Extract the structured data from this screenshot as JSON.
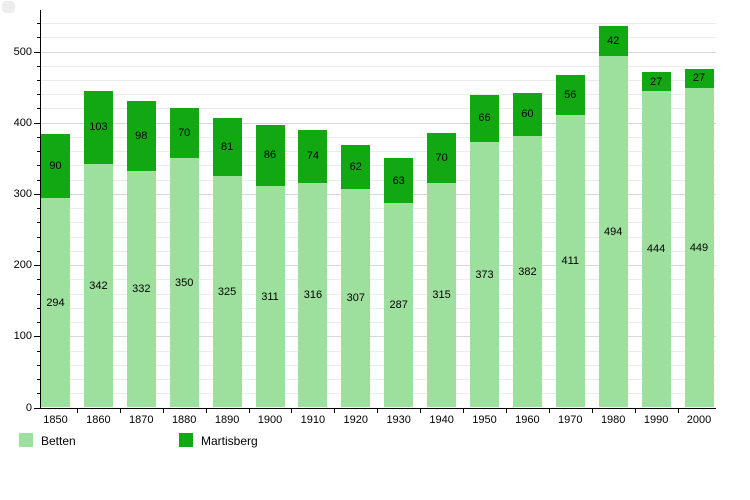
{
  "chart_data": {
    "type": "bar",
    "stacked": true,
    "title": "",
    "xlabel": "",
    "ylabel": "",
    "categories": [
      "1850",
      "1860",
      "1870",
      "1880",
      "1890",
      "1900",
      "1910",
      "1920",
      "1930",
      "1940",
      "1950",
      "1960",
      "1970",
      "1980",
      "1990",
      "2000"
    ],
    "series": [
      {
        "name": "Betten",
        "color": "#9de09d",
        "values": [
          294,
          342,
          332,
          350,
          325,
          311,
          316,
          307,
          287,
          315,
          373,
          382,
          411,
          494,
          444,
          449
        ]
      },
      {
        "name": "Martisberg",
        "color": "#12a812",
        "values": [
          90,
          103,
          98,
          70,
          81,
          86,
          74,
          62,
          63,
          70,
          66,
          60,
          56,
          42,
          27,
          27
        ]
      }
    ],
    "totals": [
      384,
      445,
      430,
      420,
      406,
      397,
      390,
      369,
      350,
      385,
      439,
      442,
      467,
      536,
      471,
      476
    ],
    "ylim": [
      0,
      540
    ],
    "y_major_ticks": [
      0,
      100,
      200,
      300,
      400,
      500
    ],
    "y_minor_step": 20,
    "grid": "horizontal",
    "legend_position": "bottom",
    "value_labels": "inside-center"
  },
  "legend": {
    "items": [
      {
        "label": "Betten",
        "color": "#9de09d"
      },
      {
        "label": "Martisberg",
        "color": "#12a812"
      }
    ]
  }
}
